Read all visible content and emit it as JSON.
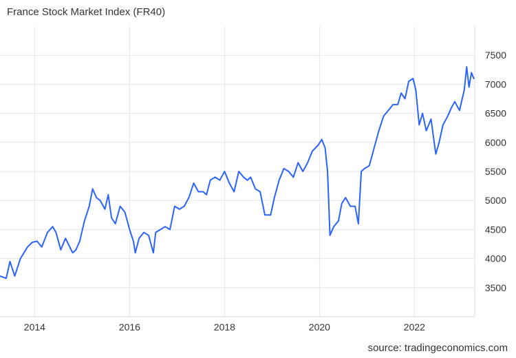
{
  "chart_data": {
    "type": "line",
    "title": "France Stock Market Index (FR40)",
    "xlabel": "",
    "ylabel": "",
    "x_range": [
      2013.27,
      2023.27
    ],
    "ylim": [
      3000,
      8000
    ],
    "x_ticks": [
      2014,
      2016,
      2018,
      2020,
      2022
    ],
    "y_ticks": [
      3500,
      4000,
      4500,
      5000,
      5500,
      6000,
      6500,
      7000,
      7500
    ],
    "y_axis_side": "right",
    "grid": true,
    "legend": "none",
    "line_color": "#2962ff",
    "series": [
      {
        "x": [
          2013.27,
          2013.4,
          2013.48,
          2013.58,
          2013.7,
          2013.85,
          2013.95,
          2014.05,
          2014.15,
          2014.27,
          2014.38,
          2014.45,
          2014.55,
          2014.65,
          2014.8,
          2014.87,
          2014.95,
          2015.05,
          2015.15,
          2015.22,
          2015.3,
          2015.38,
          2015.48,
          2015.55,
          2015.62,
          2015.7,
          2015.8,
          2015.9,
          2016.0,
          2016.08,
          2016.12,
          2016.2,
          2016.3,
          2016.4,
          2016.5,
          2016.55,
          2016.65,
          2016.75,
          2016.85,
          2016.95,
          2017.05,
          2017.15,
          2017.25,
          2017.35,
          2017.45,
          2017.55,
          2017.62,
          2017.7,
          2017.8,
          2017.9,
          2018.0,
          2018.1,
          2018.2,
          2018.3,
          2018.4,
          2018.48,
          2018.55,
          2018.65,
          2018.75,
          2018.85,
          2018.97,
          2019.05,
          2019.15,
          2019.25,
          2019.35,
          2019.45,
          2019.55,
          2019.65,
          2019.75,
          2019.85,
          2019.97,
          2020.05,
          2020.12,
          2020.17,
          2020.22,
          2020.3,
          2020.4,
          2020.47,
          2020.55,
          2020.65,
          2020.75,
          2020.82,
          2020.88,
          2020.95,
          2021.05,
          2021.15,
          2021.25,
          2021.35,
          2021.45,
          2021.55,
          2021.65,
          2021.72,
          2021.8,
          2021.88,
          2021.97,
          2022.03,
          2022.1,
          2022.17,
          2022.25,
          2022.35,
          2022.45,
          2022.52,
          2022.6,
          2022.7,
          2022.78,
          2022.85,
          2022.95,
          2023.05,
          2023.1,
          2023.15,
          2023.2,
          2023.25
        ],
        "values": [
          3700,
          3660,
          3950,
          3700,
          4000,
          4200,
          4280,
          4300,
          4200,
          4450,
          4550,
          4450,
          4150,
          4350,
          4100,
          4150,
          4300,
          4650,
          4900,
          5200,
          5050,
          5000,
          4850,
          5100,
          4700,
          4600,
          4900,
          4800,
          4500,
          4300,
          4100,
          4350,
          4450,
          4400,
          4100,
          4450,
          4500,
          4550,
          4500,
          4900,
          4850,
          4900,
          5050,
          5300,
          5150,
          5150,
          5100,
          5350,
          5400,
          5350,
          5500,
          5300,
          5150,
          5500,
          5400,
          5350,
          5400,
          5200,
          5150,
          4750,
          4750,
          5050,
          5350,
          5550,
          5500,
          5400,
          5650,
          5500,
          5650,
          5850,
          5950,
          6050,
          5900,
          5500,
          4400,
          4550,
          4650,
          4950,
          5050,
          4900,
          4900,
          4600,
          5500,
          5550,
          5600,
          5900,
          6200,
          6450,
          6550,
          6650,
          6650,
          6850,
          6750,
          7050,
          7100,
          6900,
          6300,
          6500,
          6200,
          6400,
          5800,
          6000,
          6300,
          6450,
          6600,
          6700,
          6550,
          6900,
          7300,
          6950,
          7200,
          7100
        ]
      }
    ],
    "annotations": [
      "source: tradingeconomics.com"
    ]
  },
  "source": "source: tradingeconomics.com"
}
